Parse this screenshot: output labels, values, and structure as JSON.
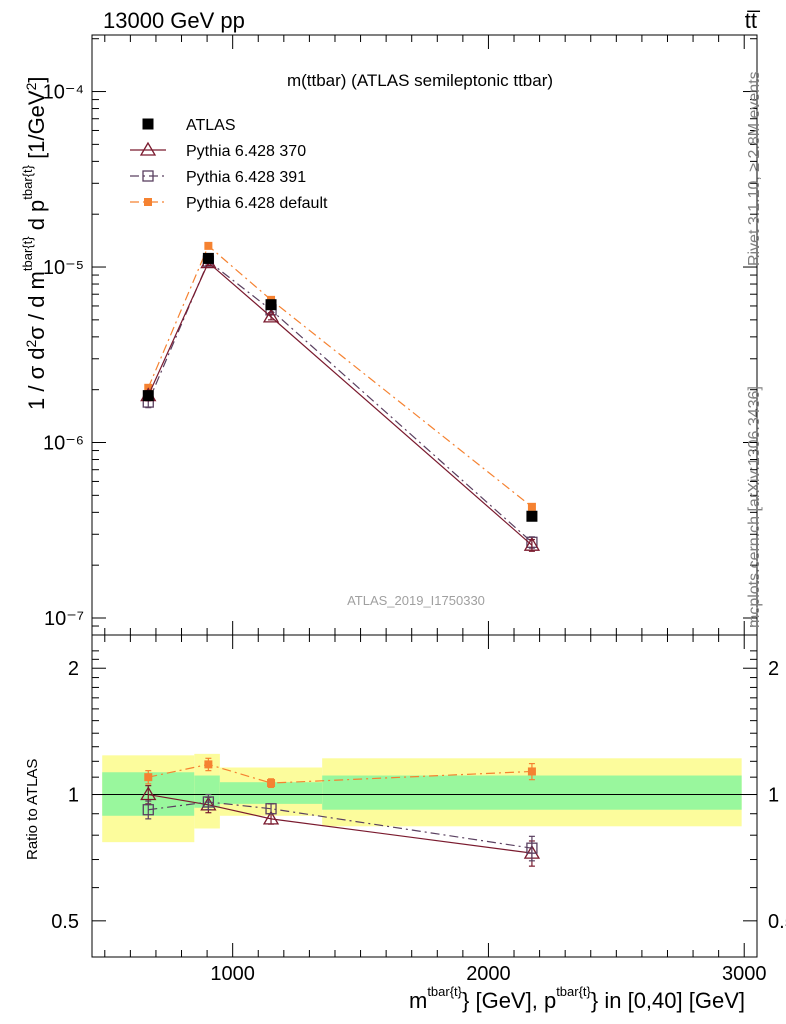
{
  "header": {
    "left": "13000 GeV pp",
    "right": "tt̅"
  },
  "side_labels": {
    "rivet": "Rivet 3.1.10, ≥ 2.8M events",
    "mcplots": "mcplots.cern.ch [arXiv:1306.3436]"
  },
  "chart_data": [
    {
      "type": "line",
      "panel": "main",
      "title": "m(ttbar) (ATLAS semileptonic ttbar)",
      "watermark": "ATLAS_2019_I1750330",
      "ylabel": "1 / σ d²σ / d m^{tbar{t}} d p_T^{tbar{t}} [1/GeV²]",
      "yscale": "log",
      "ylim": [
        8e-08,
        0.00021
      ],
      "xlim": [
        450,
        3050
      ],
      "ytick_labels": [
        "10⁻⁷",
        "10⁻⁶",
        "10⁻⁵",
        "10⁻⁴"
      ],
      "legend_position": "top-left",
      "series": [
        {
          "name": "ATLAS",
          "color": "#000000",
          "marker": "square-filled",
          "x": [
            670,
            905,
            1150,
            2170
          ],
          "y": [
            1.85e-06,
            1.12e-05,
            6.1e-06,
            3.8e-07
          ]
        },
        {
          "name": "Pythia 6.428 370",
          "color": "#7a1a2e",
          "marker": "triangle-open",
          "line": "solid",
          "x": [
            670,
            905,
            1150,
            2170
          ],
          "y": [
            1.85e-06,
            1.06e-05,
            5.2e-06,
            2.6e-07
          ],
          "errors": [
            1.2e-07,
            4e-07,
            2e-07,
            2e-08
          ]
        },
        {
          "name": "Pythia 6.428 391",
          "color": "#5a4060",
          "marker": "square-open",
          "line": "dashdot",
          "x": [
            670,
            905,
            1150,
            2170
          ],
          "y": [
            1.7e-06,
            1.08e-05,
            5.7e-06,
            2.7e-07
          ],
          "errors": [
            1.2e-07,
            4e-07,
            2e-07,
            2e-08
          ]
        },
        {
          "name": "Pythia 6.428 default",
          "color": "#f58231",
          "marker": "square-filled-small",
          "line": "dashdot",
          "x": [
            670,
            905,
            1150,
            2170
          ],
          "y": [
            2.05e-06,
            1.32e-05,
            6.5e-06,
            4.3e-07
          ],
          "errors": [
            8e-08,
            3e-07,
            1.5e-07,
            1.5e-08
          ]
        }
      ]
    },
    {
      "type": "line",
      "panel": "ratio",
      "ylabel": "Ratio to ATLAS",
      "xlabel": "m^{tbar{t}} [GeV], p_T^{tbar{t}} in [0,40] [GeV]",
      "xlim": [
        450,
        3050
      ],
      "ylim": [
        0.41,
        2.4
      ],
      "yscale": "log",
      "ytick_labels": [
        "0.5",
        "1",
        "2"
      ],
      "xtick_labels": [
        "1000",
        "2000",
        "3000"
      ],
      "uncertainty_bands": {
        "bins": [
          [
            490,
            850
          ],
          [
            850,
            950
          ],
          [
            950,
            1350
          ],
          [
            1350,
            2990
          ]
        ],
        "inner": [
          [
            0.89,
            1.13
          ],
          [
            0.93,
            1.11
          ],
          [
            0.95,
            1.07
          ],
          [
            0.92,
            1.11
          ]
        ],
        "outer": [
          [
            0.77,
            1.24
          ],
          [
            0.83,
            1.25
          ],
          [
            0.89,
            1.16
          ],
          [
            0.84,
            1.22
          ]
        ],
        "inner_color": "#99f79d",
        "outer_color": "#fcfc9c"
      },
      "series": [
        {
          "name": "Pythia 6.428 370",
          "color": "#7a1a2e",
          "marker": "triangle-open",
          "line": "solid",
          "x": [
            670,
            905,
            1150,
            2170
          ],
          "y": [
            1.0,
            0.945,
            0.875,
            0.725
          ],
          "errors": [
            0.05,
            0.04,
            0.025,
            0.05
          ]
        },
        {
          "name": "Pythia 6.428 391",
          "color": "#5a4060",
          "marker": "square-open",
          "line": "dashdot",
          "x": [
            670,
            905,
            1150,
            2170
          ],
          "y": [
            0.92,
            0.96,
            0.925,
            0.745
          ],
          "errors": [
            0.045,
            0.04,
            0.025,
            0.05
          ]
        },
        {
          "name": "Pythia 6.428 default",
          "color": "#f58231",
          "marker": "square-filled-small",
          "line": "dashdot",
          "x": [
            670,
            905,
            1150,
            2170
          ],
          "y": [
            1.1,
            1.18,
            1.065,
            1.135
          ],
          "errors": [
            0.04,
            0.04,
            0.025,
            0.05
          ]
        }
      ]
    }
  ]
}
